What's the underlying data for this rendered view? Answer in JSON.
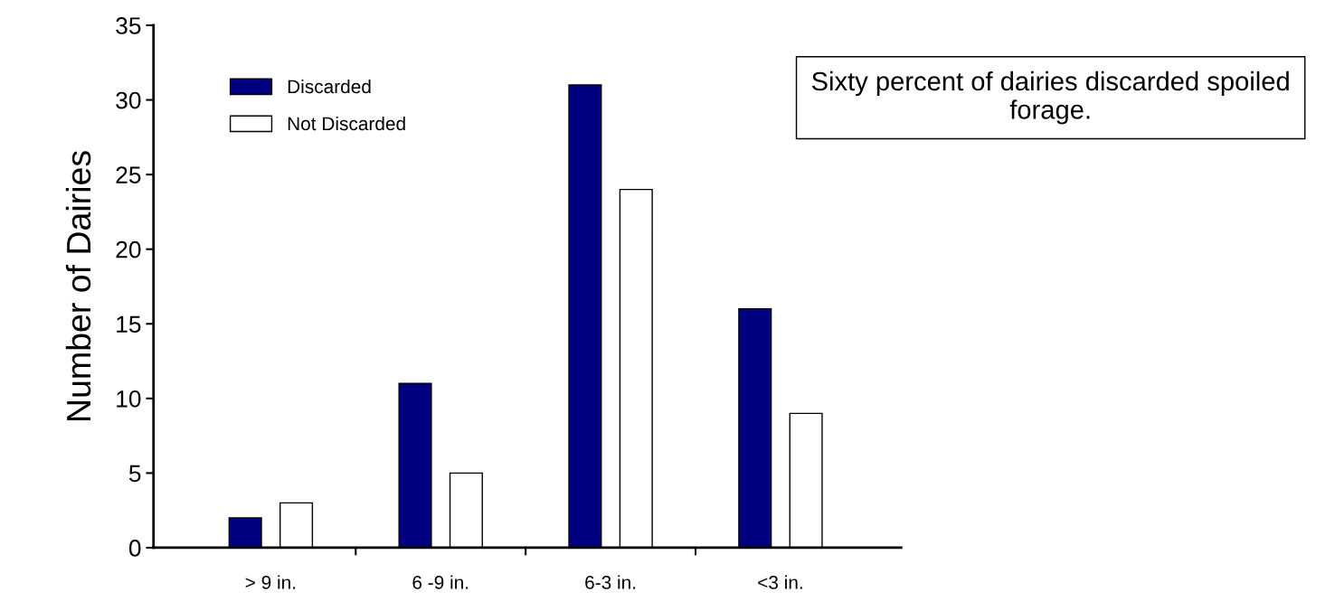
{
  "chart_data": {
    "type": "bar",
    "ylabel": "Number of Dairies",
    "categories": [
      "> 9 in.",
      "6 -9 in.",
      "6-3 in.",
      "<3 in."
    ],
    "series": [
      {
        "name": "Discarded",
        "color": "#000080",
        "values": [
          2,
          11,
          31,
          16
        ]
      },
      {
        "name": "Not Discarded",
        "color": "#ffffff",
        "values": [
          3,
          5,
          24,
          9
        ]
      }
    ],
    "ylim": [
      0,
      35
    ],
    "yticks": [
      0,
      5,
      10,
      15,
      20,
      25,
      30,
      35
    ],
    "grid": false,
    "legend": "top left",
    "annotations": [
      "Sixty percent of dairies discarded spoiled forage."
    ]
  }
}
